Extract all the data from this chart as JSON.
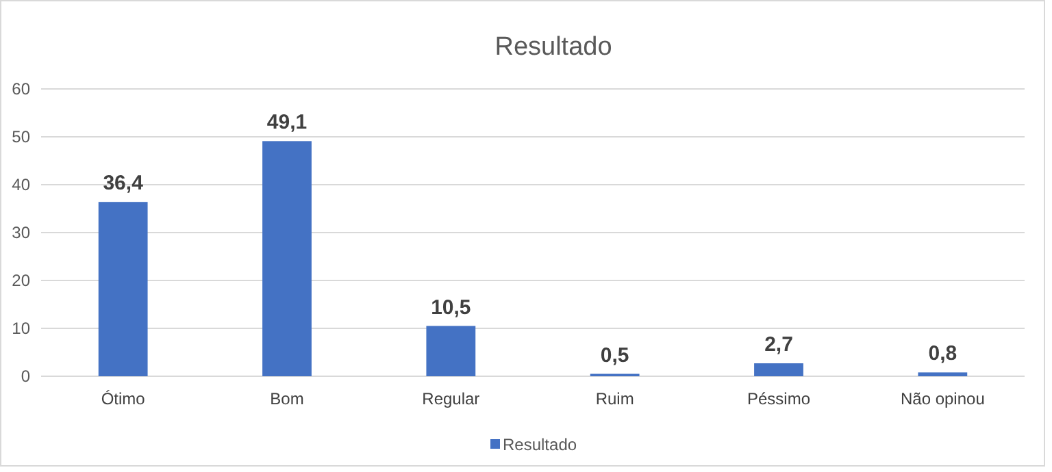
{
  "chart_data": {
    "type": "bar",
    "title": "Resultado",
    "categories": [
      "Ótimo",
      "Bom",
      "Regular",
      "Ruim",
      "Péssimo",
      "Não opinou"
    ],
    "series": [
      {
        "name": "Resultado",
        "color": "#4472c4",
        "values": [
          36.4,
          49.1,
          10.5,
          0.5,
          2.7,
          0.8
        ],
        "value_labels": [
          "36,4",
          "49,1",
          "10,5",
          "0,5",
          "2,7",
          "0,8"
        ]
      }
    ],
    "ylim": [
      0,
      60
    ],
    "yticks": [
      0,
      10,
      20,
      30,
      40,
      50,
      60
    ],
    "grid": "y",
    "legend": "bottom"
  }
}
